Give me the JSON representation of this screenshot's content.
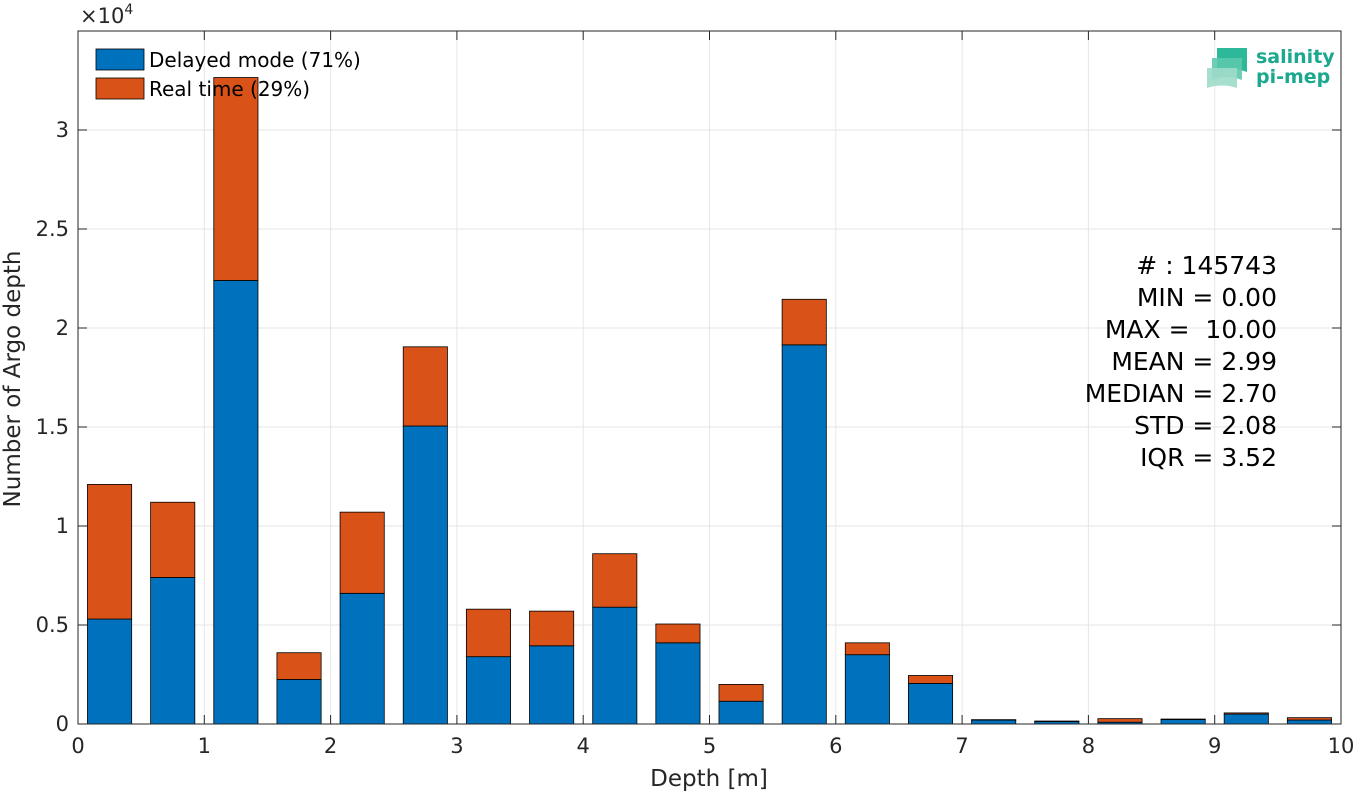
{
  "chart_data": {
    "type": "bar",
    "stacked": true,
    "xlabel": "Depth [m]",
    "ylabel": "Number of Argo depth",
    "exponent_label": "×10",
    "exponent_power": "4",
    "xlim": [
      0,
      10
    ],
    "ylim": [
      0,
      35000
    ],
    "xticks": [
      0,
      1,
      2,
      3,
      4,
      5,
      6,
      7,
      8,
      9,
      10
    ],
    "yticks": [
      0,
      5000,
      10000,
      15000,
      20000,
      25000,
      30000
    ],
    "ytick_labels": [
      "0",
      "0.5",
      "1",
      "1.5",
      "2",
      "2.5",
      "3"
    ],
    "grid": true,
    "legend_position": "top-left",
    "bin_centers": [
      0.25,
      0.75,
      1.25,
      1.75,
      2.25,
      2.75,
      3.25,
      3.75,
      4.25,
      4.75,
      5.25,
      5.75,
      6.25,
      6.75,
      7.25,
      7.75,
      8.25,
      8.75,
      9.25,
      9.75
    ],
    "bar_width": 0.35,
    "series": [
      {
        "name": "Delayed mode (71%)",
        "color": "#0072BD",
        "values": [
          5300,
          7400,
          22400,
          2250,
          6600,
          15050,
          3400,
          3950,
          5900,
          4100,
          1150,
          19150,
          3500,
          2050,
          200,
          120,
          90,
          230,
          500,
          200
        ]
      },
      {
        "name": "Real time (29%)",
        "color": "#D95319",
        "values": [
          6800,
          3800,
          10250,
          1350,
          4100,
          4000,
          2400,
          1750,
          2700,
          950,
          850,
          2300,
          600,
          400,
          20,
          30,
          180,
          20,
          60,
          120
        ]
      }
    ],
    "stats": [
      "# : 145743",
      "MIN = 0.00",
      "MAX =  10.00",
      "MEAN = 2.99",
      "MEDIAN = 2.70",
      "STD = 2.08",
      "IQR = 3.52"
    ]
  },
  "logo": {
    "line1": "salinity",
    "line2": "pi-mep",
    "color": "#1aa88e"
  }
}
